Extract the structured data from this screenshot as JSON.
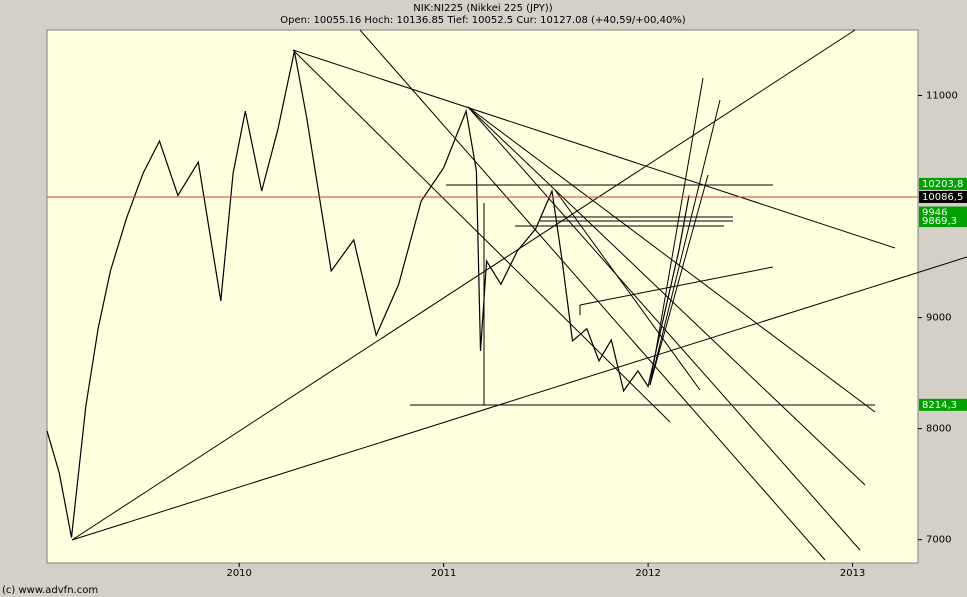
{
  "chart_data": {
    "type": "line",
    "title": "NIK:NI225 (Nikkei 225 (JPY))",
    "subtitle": "Open: 10055.16 Hoch: 10136.85 Tief: 10052.5 Cur: 10127.08 (+40,59/+00,40%)",
    "footer": "(c) www.advfn.com",
    "x": [
      2009.06,
      2009.12,
      2009.18,
      2009.25,
      2009.31,
      2009.37,
      2009.45,
      2009.53,
      2009.61,
      2009.7,
      2009.8,
      2009.91,
      2009.97,
      2010.03,
      2010.11,
      2010.19,
      2010.27,
      2010.33,
      2010.45,
      2010.56,
      2010.67,
      2010.78,
      2010.89,
      2011.0,
      2011.11,
      2011.16,
      2011.18,
      2011.21,
      2011.28,
      2011.36,
      2011.45,
      2011.53,
      2011.58,
      2011.63,
      2011.7,
      2011.76,
      2011.82,
      2011.88,
      2011.95,
      2012.0,
      2012.05,
      2012.1,
      2012.15,
      2012.2
    ],
    "series": [
      {
        "name": "NI225",
        "color": "#000000",
        "values": [
          7980,
          7600,
          7020,
          8200,
          8900,
          9420,
          9900,
          10300,
          10590,
          10100,
          10400,
          9150,
          10300,
          10860,
          10140,
          10700,
          11400,
          10800,
          9420,
          9700,
          8840,
          9300,
          10050,
          10350,
          10860,
          10320,
          8700,
          9510,
          9300,
          9600,
          9800,
          10140,
          9510,
          8790,
          8900,
          8610,
          8800,
          8340,
          8520,
          8380,
          8790,
          9200,
          9600,
          10100
        ]
      }
    ],
    "xlim": [
      2009.06,
      2013.32
    ],
    "ylim": [
      6790,
      11590
    ],
    "xticks": [
      2010,
      2011,
      2012,
      2013
    ],
    "yticks": [
      7000,
      8000,
      9000,
      11000
    ],
    "price_labels": [
      {
        "value": 10203.8,
        "label": "10203,8"
      },
      {
        "value": 10086.5,
        "label": "10086,5"
      },
      {
        "value": 9946,
        "label": "9946"
      },
      {
        "value": 9869.3,
        "label": "9869,3"
      },
      {
        "value": 8214.3,
        "label": "8214,3"
      }
    ]
  }
}
